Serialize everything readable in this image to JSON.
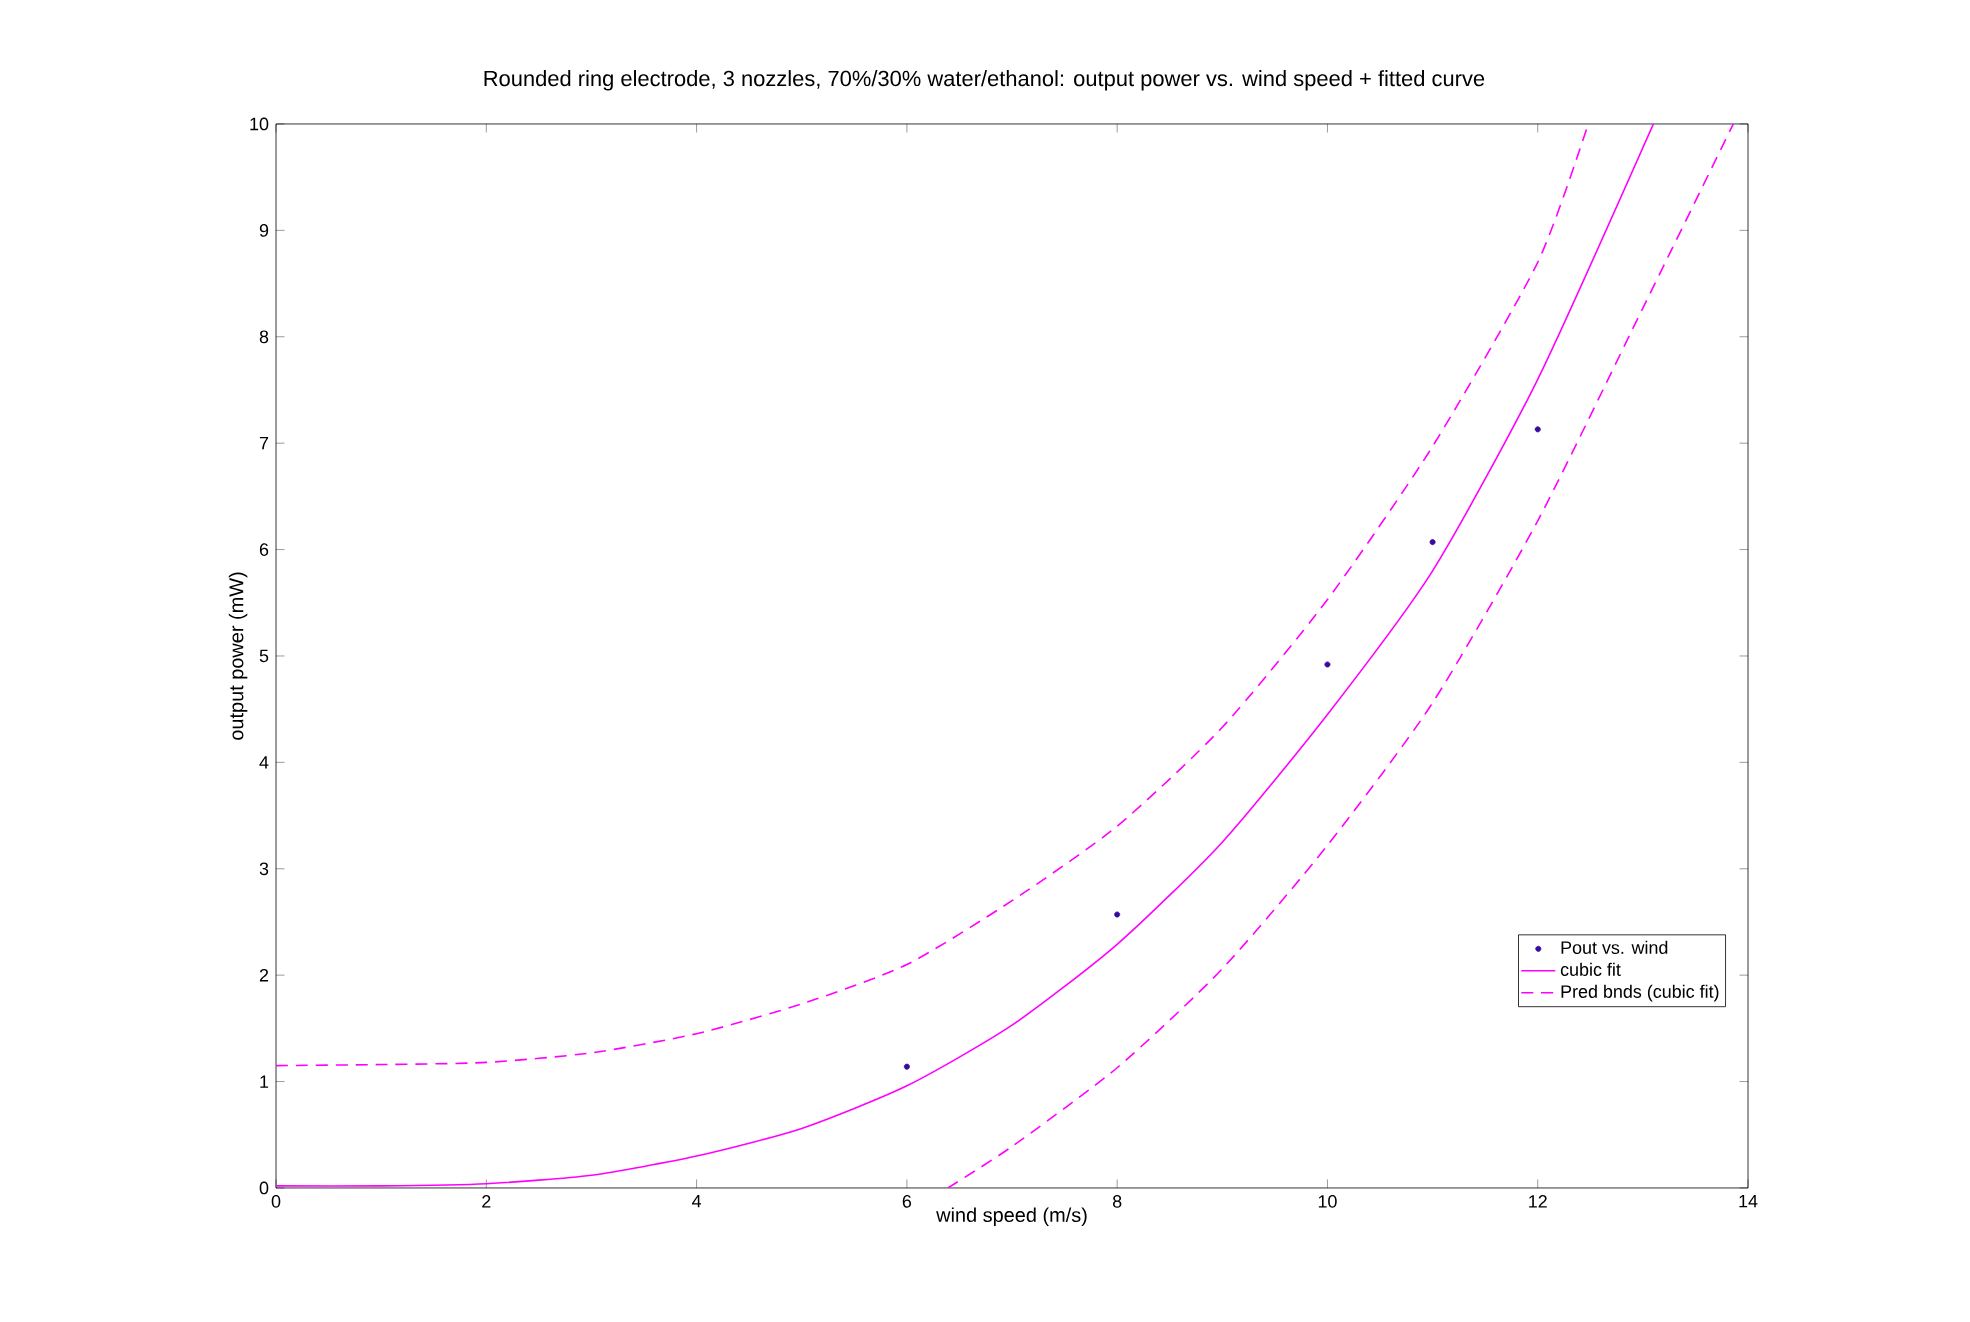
{
  "chart_data": {
    "type": "line",
    "title": "Rounded ring electrode, 3 nozzles, 70%/30% water/ethanol: output power vs. wind speed + fitted curve",
    "xlabel": "wind speed (m/s)",
    "ylabel": "output power (mW)",
    "xlim": [
      0,
      14
    ],
    "ylim": [
      0,
      10
    ],
    "xticks": [
      0,
      2,
      4,
      6,
      8,
      10,
      12,
      14
    ],
    "yticks": [
      0,
      1,
      2,
      3,
      4,
      5,
      6,
      7,
      8,
      9,
      10
    ],
    "grid": false,
    "legend": "bottom right",
    "series": [
      {
        "name": "Pout vs. wind",
        "type": "scatter",
        "marker": "circle",
        "color": "#3a0a9e",
        "x": [
          6,
          8,
          10,
          11,
          12
        ],
        "values": [
          1.14,
          2.57,
          4.92,
          6.07,
          7.13
        ]
      },
      {
        "name": "cubic fit",
        "line_style": "solid",
        "color": "#ff00ff",
        "x": [
          0,
          1,
          2,
          3,
          4,
          5,
          6,
          7,
          8,
          9,
          10,
          11,
          12,
          13.1
        ],
        "values": [
          0.02,
          0.02,
          0.04,
          0.12,
          0.3,
          0.56,
          0.96,
          1.53,
          2.29,
          3.25,
          4.45,
          5.8,
          7.6,
          10
        ]
      },
      {
        "name": "Pred bnds (cubic fit)",
        "line_style": "dashed",
        "color": "#ff00ff",
        "x": [
          0,
          1,
          2,
          3,
          4,
          5,
          6,
          7,
          8,
          9,
          10,
          11,
          12,
          12.48
        ],
        "values": [
          1.15,
          1.16,
          1.18,
          1.27,
          1.45,
          1.73,
          2.1,
          2.7,
          3.4,
          4.33,
          5.53,
          6.97,
          8.7,
          10
        ]
      },
      {
        "line_style": "dashed",
        "color": "#ff00ff",
        "x": [
          6.39,
          7,
          8,
          9,
          10,
          11,
          12,
          13,
          13.86
        ],
        "values": [
          0,
          0.39,
          1.13,
          2.06,
          3.22,
          4.56,
          6.27,
          8.27,
          10
        ]
      }
    ]
  }
}
